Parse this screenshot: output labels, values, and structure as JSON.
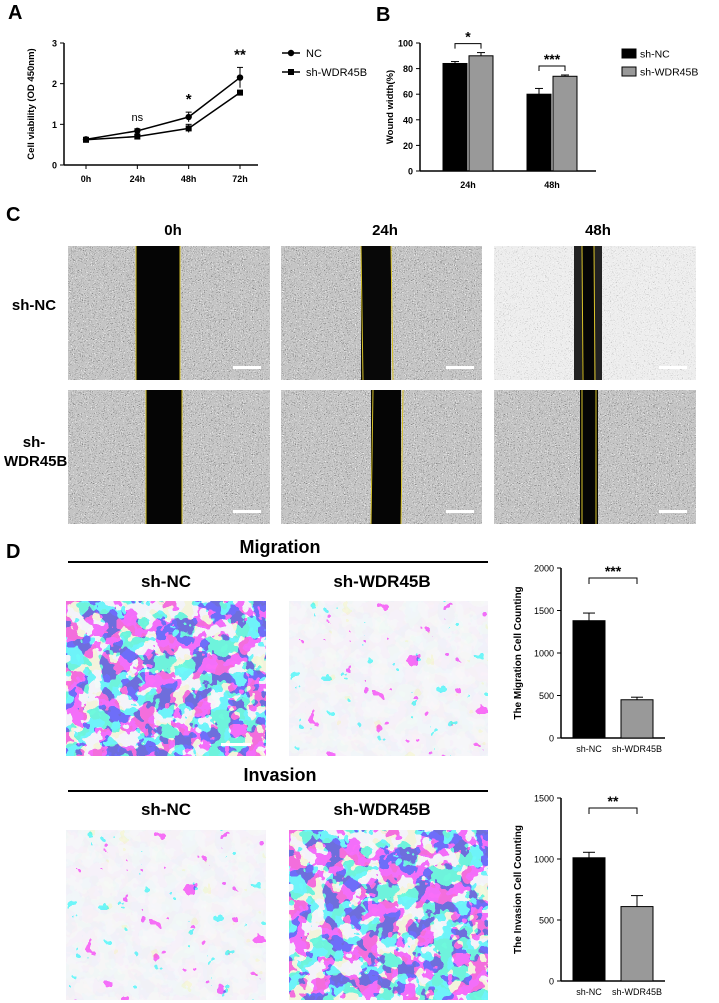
{
  "panels": {
    "A": "A",
    "B": "B",
    "C": "C",
    "D": "D"
  },
  "panelC": {
    "columns": [
      "0h",
      "24h",
      "48h"
    ],
    "rows": [
      {
        "line1": "sh-NC",
        "line2": ""
      },
      {
        "line1": "sh-",
        "line2": "WDR45B"
      }
    ]
  },
  "panelD": {
    "migration_title": "Migration",
    "invasion_title": "Invasion",
    "labels": [
      "sh-NC",
      "sh-WDR45B"
    ]
  },
  "colors": {
    "black_bar": "#000000",
    "grey_bar": "#999999",
    "crystal_violet": "#2a2ab8"
  },
  "chart_data": [
    {
      "id": "A",
      "type": "line",
      "ylabel": "Cell viability (OD 450nm)",
      "xlabel": "",
      "categories": [
        "0h",
        "24h",
        "48h",
        "72h"
      ],
      "ylim": [
        0,
        3
      ],
      "yticks": [
        0,
        1,
        2,
        3
      ],
      "series": [
        {
          "name": "NC",
          "values": [
            0.63,
            0.84,
            1.18,
            2.15
          ],
          "errors": [
            0.03,
            0.05,
            0.12,
            0.25
          ],
          "marker": "circle"
        },
        {
          "name": "sh-WDR45B",
          "values": [
            0.62,
            0.7,
            0.9,
            1.78
          ],
          "errors": [
            0.02,
            0.04,
            0.1,
            0.05
          ],
          "marker": "square"
        }
      ],
      "annotations": [
        {
          "category": "24h",
          "text": "ns"
        },
        {
          "category": "48h",
          "text": "*"
        },
        {
          "category": "72h",
          "text": "**"
        }
      ],
      "legend": "right"
    },
    {
      "id": "B",
      "type": "bar",
      "ylabel": "Wound width(%)",
      "categories": [
        "24h",
        "48h"
      ],
      "ylim": [
        0,
        100
      ],
      "yticks": [
        0,
        20,
        40,
        60,
        80,
        100
      ],
      "series": [
        {
          "name": "sh-NC",
          "values": [
            84,
            60
          ],
          "errors": [
            1.5,
            4.5
          ]
        },
        {
          "name": "sh-WDR45B",
          "values": [
            90,
            74
          ],
          "errors": [
            2.5,
            1.0
          ]
        }
      ],
      "significance": [
        "*",
        "***"
      ],
      "legend": "right"
    },
    {
      "id": "D-migration",
      "type": "bar",
      "ylabel": "The Migration Cell Counting",
      "categories": [
        "sh-NC",
        "sh-WDR45B"
      ],
      "values": [
        1380,
        450
      ],
      "errors": [
        90,
        30
      ],
      "ylim": [
        0,
        2000
      ],
      "yticks": [
        0,
        500,
        1000,
        1500,
        2000
      ],
      "significance": "***"
    },
    {
      "id": "D-invasion",
      "type": "bar",
      "ylabel": "The Invasion Cell Counting",
      "categories": [
        "sh-NC",
        "sh-WDR45B"
      ],
      "values": [
        1010,
        610
      ],
      "errors": [
        45,
        90
      ],
      "ylim": [
        0,
        1500
      ],
      "yticks": [
        0,
        500,
        1000,
        1500
      ],
      "significance": "**"
    }
  ]
}
